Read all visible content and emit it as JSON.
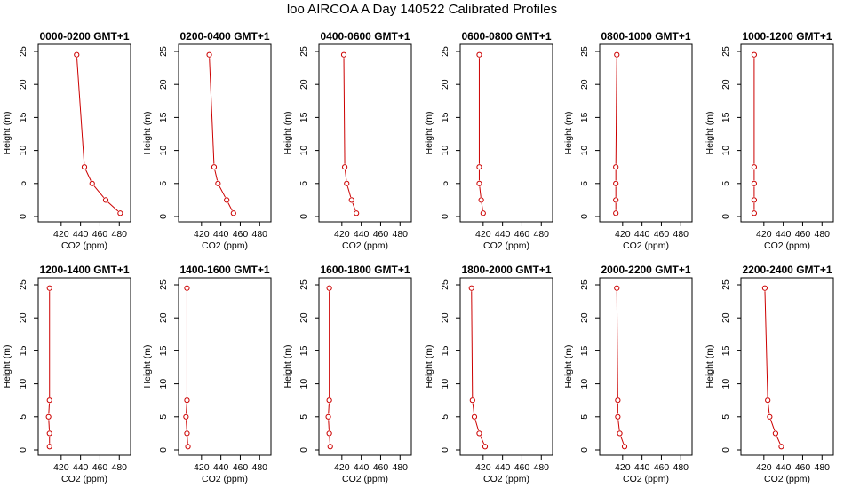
{
  "figure": {
    "title": "loo AIRCOA A  Day 140522  Calibrated Profiles"
  },
  "style": {
    "series_color": "#cc0000",
    "axis_color": "#000000"
  },
  "chart_data": [
    {
      "type": "line",
      "title": "0000-0200 GMT+1",
      "xlabel": "CO2 (ppm)",
      "ylabel": "Height (m)",
      "xlim": [
        400,
        488
      ],
      "ylim": [
        0,
        25
      ],
      "xticks": [
        420,
        440,
        460,
        480
      ],
      "yticks": [
        0,
        5,
        10,
        15,
        20,
        25
      ],
      "x": [
        481,
        466,
        452,
        444,
        436
      ],
      "y": [
        0.5,
        2.5,
        5,
        7.5,
        24.5
      ]
    },
    {
      "type": "line",
      "title": "0200-0400 GMT+1",
      "xlabel": "CO2 (ppm)",
      "ylabel": "Height (m)",
      "xlim": [
        400,
        488
      ],
      "ylim": [
        0,
        25
      ],
      "xticks": [
        420,
        440,
        460,
        480
      ],
      "yticks": [
        0,
        5,
        10,
        15,
        20,
        25
      ],
      "x": [
        453,
        446,
        437,
        433,
        428
      ],
      "y": [
        0.5,
        2.5,
        5,
        7.5,
        24.5
      ]
    },
    {
      "type": "line",
      "title": "0400-0600 GMT+1",
      "xlabel": "CO2 (ppm)",
      "ylabel": "Height (m)",
      "xlim": [
        400,
        488
      ],
      "ylim": [
        0,
        25
      ],
      "xticks": [
        420,
        440,
        460,
        480
      ],
      "yticks": [
        0,
        5,
        10,
        15,
        20,
        25
      ],
      "x": [
        435,
        430,
        425,
        423,
        422
      ],
      "y": [
        0.5,
        2.5,
        5,
        7.5,
        24.5
      ]
    },
    {
      "type": "line",
      "title": "0600-0800 GMT+1",
      "xlabel": "CO2 (ppm)",
      "ylabel": "Height (m)",
      "xlim": [
        400,
        488
      ],
      "ylim": [
        0,
        25
      ],
      "xticks": [
        420,
        440,
        460,
        480
      ],
      "yticks": [
        0,
        5,
        10,
        15,
        20,
        25
      ],
      "x": [
        420,
        418,
        416,
        416,
        416
      ],
      "y": [
        0.5,
        2.5,
        5,
        7.5,
        24.5
      ]
    },
    {
      "type": "line",
      "title": "0800-1000 GMT+1",
      "xlabel": "CO2 (ppm)",
      "ylabel": "Height (m)",
      "xlim": [
        400,
        488
      ],
      "ylim": [
        0,
        25
      ],
      "xticks": [
        420,
        440,
        460,
        480
      ],
      "yticks": [
        0,
        5,
        10,
        15,
        20,
        25
      ],
      "x": [
        413,
        413,
        413,
        413,
        414
      ],
      "y": [
        0.5,
        2.5,
        5,
        7.5,
        24.5
      ]
    },
    {
      "type": "line",
      "title": "1000-1200 GMT+1",
      "xlabel": "CO2 (ppm)",
      "ylabel": "Height (m)",
      "xlim": [
        400,
        488
      ],
      "ylim": [
        0,
        25
      ],
      "xticks": [
        420,
        440,
        460,
        480
      ],
      "yticks": [
        0,
        5,
        10,
        15,
        20,
        25
      ],
      "x": [
        410,
        410,
        410,
        410,
        410
      ],
      "y": [
        0.5,
        2.5,
        5,
        7.5,
        24.5
      ]
    },
    {
      "type": "line",
      "title": "1200-1400 GMT+1",
      "xlabel": "CO2 (ppm)",
      "ylabel": "Height (m)",
      "xlim": [
        400,
        488
      ],
      "ylim": [
        0,
        25
      ],
      "xticks": [
        420,
        440,
        460,
        480
      ],
      "yticks": [
        0,
        5,
        10,
        15,
        20,
        25
      ],
      "x": [
        408,
        408,
        407,
        408,
        408
      ],
      "y": [
        0.5,
        2.5,
        5,
        7.5,
        24.5
      ]
    },
    {
      "type": "line",
      "title": "1400-1600 GMT+1",
      "xlabel": "CO2 (ppm)",
      "ylabel": "Height (m)",
      "xlim": [
        400,
        488
      ],
      "ylim": [
        0,
        25
      ],
      "xticks": [
        420,
        440,
        460,
        480
      ],
      "yticks": [
        0,
        5,
        10,
        15,
        20,
        25
      ],
      "x": [
        406,
        405,
        404,
        405,
        405
      ],
      "y": [
        0.5,
        2.5,
        5,
        7.5,
        24.5
      ]
    },
    {
      "type": "line",
      "title": "1600-1800 GMT+1",
      "xlabel": "CO2 (ppm)",
      "ylabel": "Height (m)",
      "xlim": [
        400,
        488
      ],
      "ylim": [
        0,
        25
      ],
      "xticks": [
        420,
        440,
        460,
        480
      ],
      "yticks": [
        0,
        5,
        10,
        15,
        20,
        25
      ],
      "x": [
        408,
        407,
        406,
        407,
        407
      ],
      "y": [
        0.5,
        2.5,
        5,
        7.5,
        24.5
      ]
    },
    {
      "type": "line",
      "title": "1800-2000 GMT+1",
      "xlabel": "CO2 (ppm)",
      "ylabel": "Height (m)",
      "xlim": [
        400,
        488
      ],
      "ylim": [
        0,
        25
      ],
      "xticks": [
        420,
        440,
        460,
        480
      ],
      "yticks": [
        0,
        5,
        10,
        15,
        20,
        25
      ],
      "x": [
        422,
        416,
        411,
        409,
        408
      ],
      "y": [
        0.5,
        2.5,
        5,
        7.5,
        24.5
      ]
    },
    {
      "type": "line",
      "title": "2000-2200 GMT+1",
      "xlabel": "CO2 (ppm)",
      "ylabel": "Height (m)",
      "xlim": [
        400,
        488
      ],
      "ylim": [
        0,
        25
      ],
      "xticks": [
        420,
        440,
        460,
        480
      ],
      "yticks": [
        0,
        5,
        10,
        15,
        20,
        25
      ],
      "x": [
        422,
        417,
        415,
        415,
        414
      ],
      "y": [
        0.5,
        2.5,
        5,
        7.5,
        24.5
      ]
    },
    {
      "type": "line",
      "title": "2200-2400 GMT+1",
      "xlabel": "CO2 (ppm)",
      "ylabel": "Height (m)",
      "xlim": [
        400,
        488
      ],
      "ylim": [
        0,
        25
      ],
      "xticks": [
        420,
        440,
        460,
        480
      ],
      "yticks": [
        0,
        5,
        10,
        15,
        20,
        25
      ],
      "x": [
        438,
        432,
        426,
        424,
        421
      ],
      "y": [
        0.5,
        2.5,
        5,
        7.5,
        24.5
      ]
    }
  ]
}
